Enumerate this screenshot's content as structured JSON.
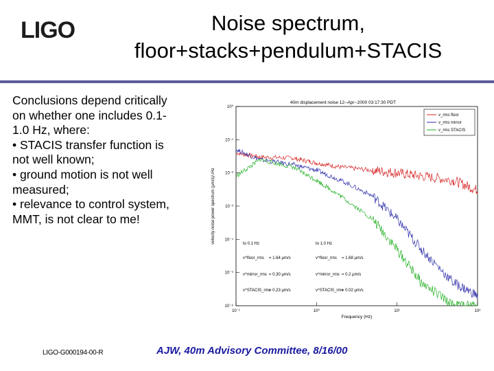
{
  "header": {
    "logo_text": "LIGO",
    "title_line1": "Noise spectrum,",
    "title_line2": "floor+stacks+pendulum+STACIS"
  },
  "body": {
    "lines": [
      "Conclusions depend critically",
      "on whether one includes 0.1-",
      "1.0 Hz, where:",
      "• STACIS transfer function is",
      "not well known;",
      "• ground motion is not well",
      "measured;",
      "• relevance to control system,",
      "MMT, is not clear to me!"
    ]
  },
  "footer": {
    "doc_id": "LIGO-G000194-00-R",
    "meeting": "AJW, 40m Advisory Committee, 8/16/00"
  },
  "colors": {
    "floor": "#d42020",
    "mirror": "#2a2aa8",
    "stacis": "#22b022",
    "rule": "#5b5b9a",
    "footer": "#1a1aa0"
  },
  "chart_data": {
    "type": "line",
    "title": "40m displacement noise 12--Apr--2000 03:17:30 PDT",
    "xlabel": "Frequency (Hz)",
    "ylabel": "velocity noise power spectrum (μm/s)/√Hz",
    "xscale": "log",
    "yscale": "log",
    "xlim": [
      0.1,
      100
    ],
    "ylim_exp": [
      -6,
      0
    ],
    "x_ticks": [
      "10⁻¹",
      "10⁰",
      "10¹",
      "10²"
    ],
    "y_ticks": [
      "10⁰",
      "10⁻¹",
      "10⁻²",
      "10⁻³",
      "10⁻⁴",
      "10⁻⁵",
      "10⁻⁶"
    ],
    "legend_position": "top-right",
    "series": [
      {
        "name": "v_rms floor",
        "color_key": "floor",
        "values": [
          [
            0.1,
            0.04
          ],
          [
            0.2,
            0.03
          ],
          [
            0.5,
            0.028
          ],
          [
            1,
            0.02
          ],
          [
            2,
            0.015
          ],
          [
            5,
            0.012
          ],
          [
            10,
            0.01
          ],
          [
            20,
            0.008
          ],
          [
            50,
            0.006
          ],
          [
            100,
            0.003
          ]
        ]
      },
      {
        "name": "v_rms mirror",
        "color_key": "mirror",
        "values": [
          [
            0.1,
            0.05
          ],
          [
            0.2,
            0.025
          ],
          [
            0.5,
            0.018
          ],
          [
            1,
            0.012
          ],
          [
            2,
            0.006
          ],
          [
            5,
            0.002
          ],
          [
            10,
            0.0004
          ],
          [
            20,
            5e-05
          ],
          [
            50,
            5e-06
          ],
          [
            100,
            2e-06
          ]
        ]
      },
      {
        "name": "v_rms STACIS",
        "color_key": "stacis",
        "values": [
          [
            0.1,
            0.008
          ],
          [
            0.2,
            0.025
          ],
          [
            0.5,
            0.015
          ],
          [
            1,
            0.006
          ],
          [
            2,
            0.002
          ],
          [
            5,
            0.0004
          ],
          [
            10,
            5e-05
          ],
          [
            20,
            5e-06
          ],
          [
            50,
            1e-06
          ],
          [
            100,
            1e-06
          ]
        ]
      }
    ],
    "annotations": {
      "left_header": "to 0.1 Hz",
      "right_header": "to 1.0 Hz",
      "rows": [
        {
          "label": "v^floor_rms",
          "left": "= 1.64 μm/s",
          "right": "= 1.68 μm/s"
        },
        {
          "label": "v^mirror_rms",
          "left": "= 0.30 μm/s",
          "right": "= 0.2 μm/s"
        },
        {
          "label": "v^STACIS_rms",
          "left": "= 0.23 μm/s",
          "right": "= 0.02 μm/s"
        }
      ]
    }
  }
}
